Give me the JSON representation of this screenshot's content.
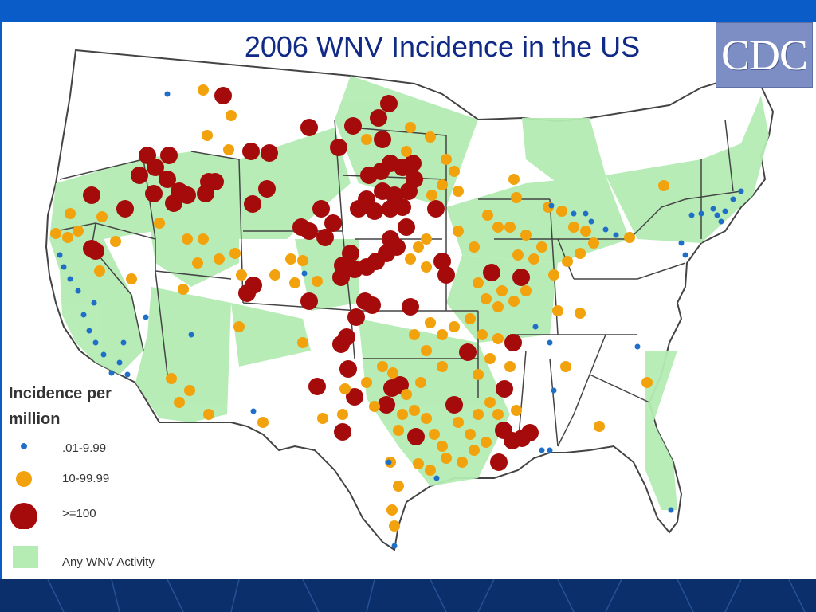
{
  "title": "2006 WNV Incidence in the US",
  "logo": {
    "text": "CDC"
  },
  "legend": {
    "title": "Incidence per million",
    "items": [
      {
        "label": ".01-9.99",
        "color": "#1f6fc9",
        "symbol": "small-dot"
      },
      {
        "label": "10-99.99",
        "color": "#f2a20d",
        "symbol": "medium-dot"
      },
      {
        "label": ">=100",
        "color": "#a50b0b",
        "symbol": "large-dot"
      },
      {
        "label": "Any WNV Activity",
        "color": "#b4ecb4",
        "symbol": "square"
      }
    ]
  },
  "colors": {
    "land": "#ffffff",
    "activity": "#b4ecb4",
    "border": "#555555",
    "background_bar": "#0a5cc8",
    "footer": "#0b2f6b"
  }
}
